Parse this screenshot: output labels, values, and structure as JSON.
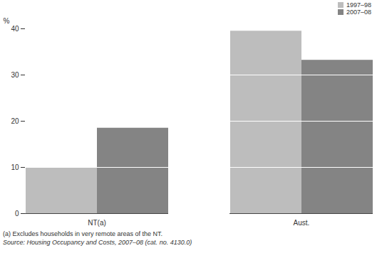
{
  "chart_data": {
    "type": "bar",
    "categories": [
      "NT(a)",
      "Aust."
    ],
    "series": [
      {
        "name": "1997–98",
        "color": "#bdbdbd",
        "values": [
          10,
          39.5
        ]
      },
      {
        "name": "2007–08",
        "color": "#848484",
        "values": [
          18.5,
          33.2
        ]
      }
    ],
    "y_label": "%",
    "ylim": [
      0,
      40
    ],
    "yticks": [
      0,
      10,
      20,
      30,
      40
    ],
    "grid": true,
    "legend": "top right",
    "annotations": [
      "(a) Excludes households in very remote areas of the NT.",
      "Source: Housing Occupancy and Costs, 2007–08 (cat. no. 4130.0)"
    ]
  }
}
